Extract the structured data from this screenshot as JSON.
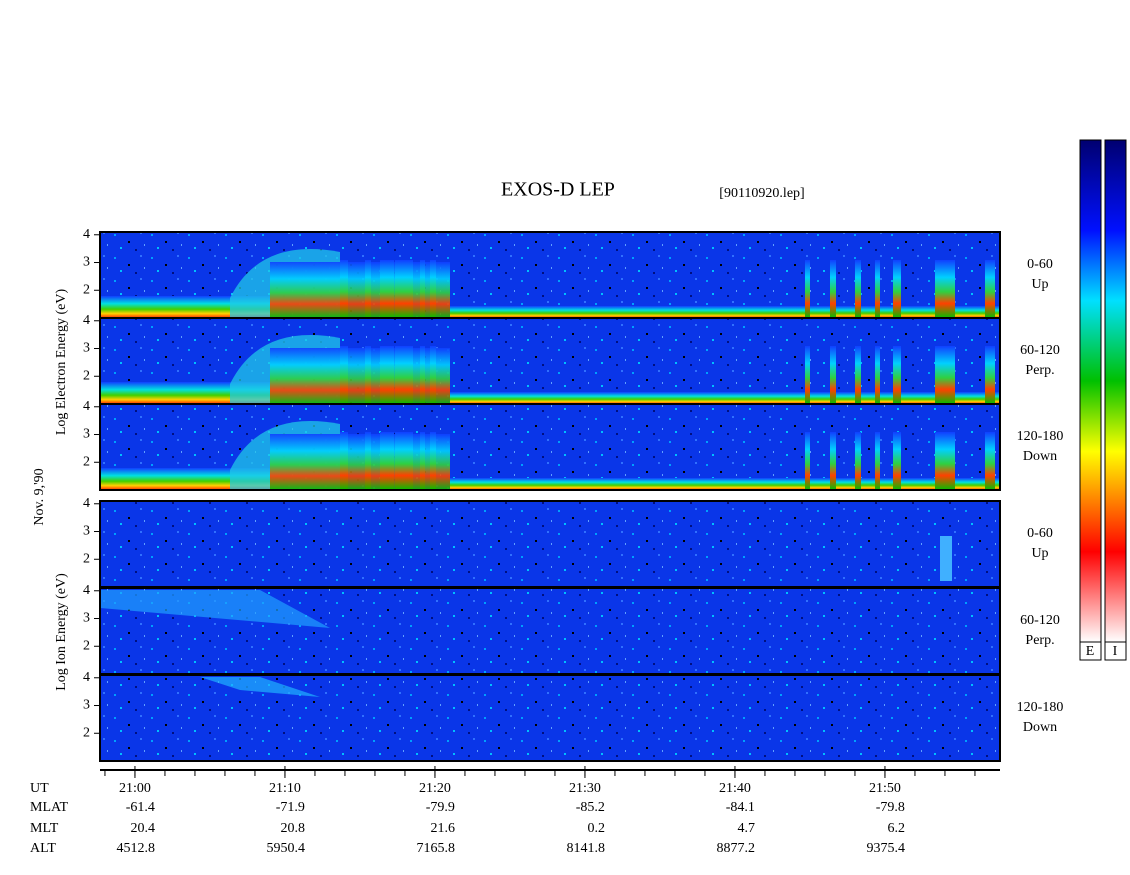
{
  "chart_data": {
    "type": "spectrogram",
    "title": "EXOS-D LEP",
    "file_label": "[90110920.lep]",
    "electron_ylabel": "Log Electron Energy (eV)",
    "date_label": "Nov. 9,'90",
    "ion_ylabel": "Log Ion Energy (eV)",
    "panels": [
      {
        "species": "electron",
        "label_top": "0-60",
        "label_bottom": "Up"
      },
      {
        "species": "electron",
        "label_top": "60-120",
        "label_bottom": "Perp."
      },
      {
        "species": "electron",
        "label_top": "120-180",
        "label_bottom": "Down"
      },
      {
        "species": "ion",
        "label_top": "0-60",
        "label_bottom": "Up"
      },
      {
        "species": "ion",
        "label_top": "60-120",
        "label_bottom": "Perp."
      },
      {
        "species": "ion",
        "label_top": "120-180",
        "label_bottom": "Down"
      }
    ],
    "ylim": [
      1,
      4.1
    ],
    "yticks": [
      2,
      3,
      4
    ],
    "xlim": [
      -2.33,
      57.67
    ],
    "xticks": [
      {
        "value": 0,
        "label": "21:00"
      },
      {
        "value": 10,
        "label": "21:10"
      },
      {
        "value": 20,
        "label": "21:20"
      },
      {
        "value": 30,
        "label": "21:30"
      },
      {
        "value": 40,
        "label": "21:40"
      },
      {
        "value": 50,
        "label": "21:50"
      }
    ],
    "xminor_ticks": [
      -2,
      0,
      2,
      4,
      6,
      8,
      10,
      12,
      14,
      16,
      18,
      20,
      22,
      24,
      26,
      28,
      30,
      32,
      34,
      36,
      38,
      40,
      42,
      44,
      46,
      48,
      50,
      52,
      54,
      56
    ],
    "x_row_label": "UT",
    "ephemeris": [
      {
        "name": "MLAT",
        "values": [
          -61.4,
          -71.9,
          -79.9,
          -85.2,
          -84.1,
          -79.8
        ]
      },
      {
        "name": "MLT",
        "values": [
          20.4,
          20.8,
          21.6,
          0.2,
          4.7,
          6.2
        ]
      },
      {
        "name": "ALT",
        "values": [
          4512.8,
          5950.4,
          7165.8,
          8141.8,
          8877.2,
          9375.4
        ]
      }
    ],
    "colorbar_labels": [
      "E",
      "I"
    ]
  }
}
